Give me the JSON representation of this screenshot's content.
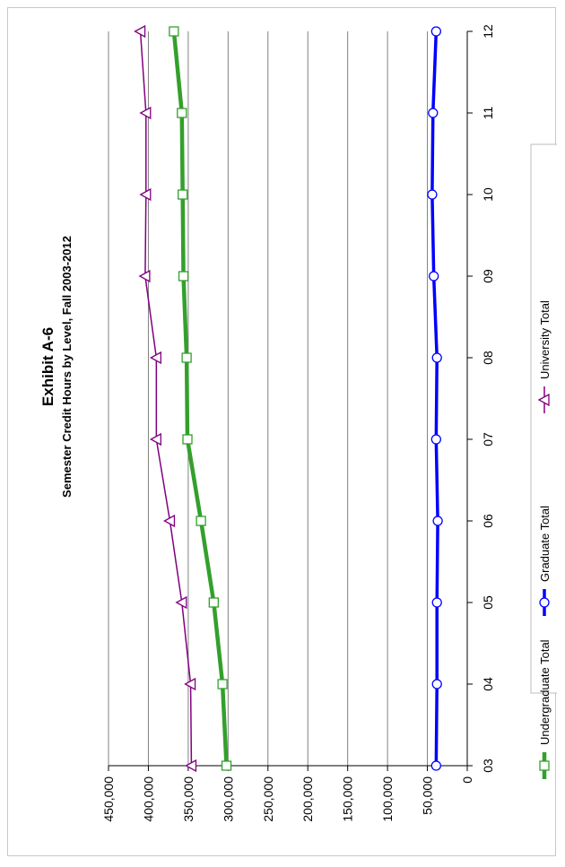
{
  "chart_data": {
    "type": "line",
    "title": "Exhibit A-6",
    "subtitle": "Semester Credit Hours by Level, Fall 2003-2012",
    "xlabel": "",
    "ylabel": "",
    "categories": [
      "03",
      "04",
      "05",
      "06",
      "07",
      "08",
      "09",
      "10",
      "11",
      "12"
    ],
    "ylim": [
      0,
      450000
    ],
    "y_ticks": [
      0,
      50000,
      100000,
      150000,
      200000,
      250000,
      300000,
      350000,
      400000,
      450000
    ],
    "y_tick_labels": [
      "0",
      "50,000",
      "100,000",
      "150,000",
      "200,000",
      "250,000",
      "300,000",
      "350,000",
      "400,000",
      "450,000"
    ],
    "grid": true,
    "orientation": "rotated 90 degrees clockwise",
    "legend_position": "bottom",
    "series": [
      {
        "name": "Undergraduate Total",
        "color": "#33a02c",
        "marker": "square",
        "values": [
          302000,
          307000,
          318000,
          334000,
          351000,
          352000,
          356000,
          357000,
          358000,
          368000
        ]
      },
      {
        "name": "Graduate Total",
        "color": "#0000ff",
        "marker": "circle",
        "values": [
          39000,
          38000,
          38000,
          37000,
          39000,
          38000,
          42000,
          44000,
          43000,
          39000
        ]
      },
      {
        "name": "University Total",
        "color": "#800080",
        "marker": "triangle",
        "values": [
          346000,
          347000,
          358000,
          373000,
          390000,
          390000,
          404000,
          403000,
          403000,
          410000
        ]
      }
    ]
  }
}
